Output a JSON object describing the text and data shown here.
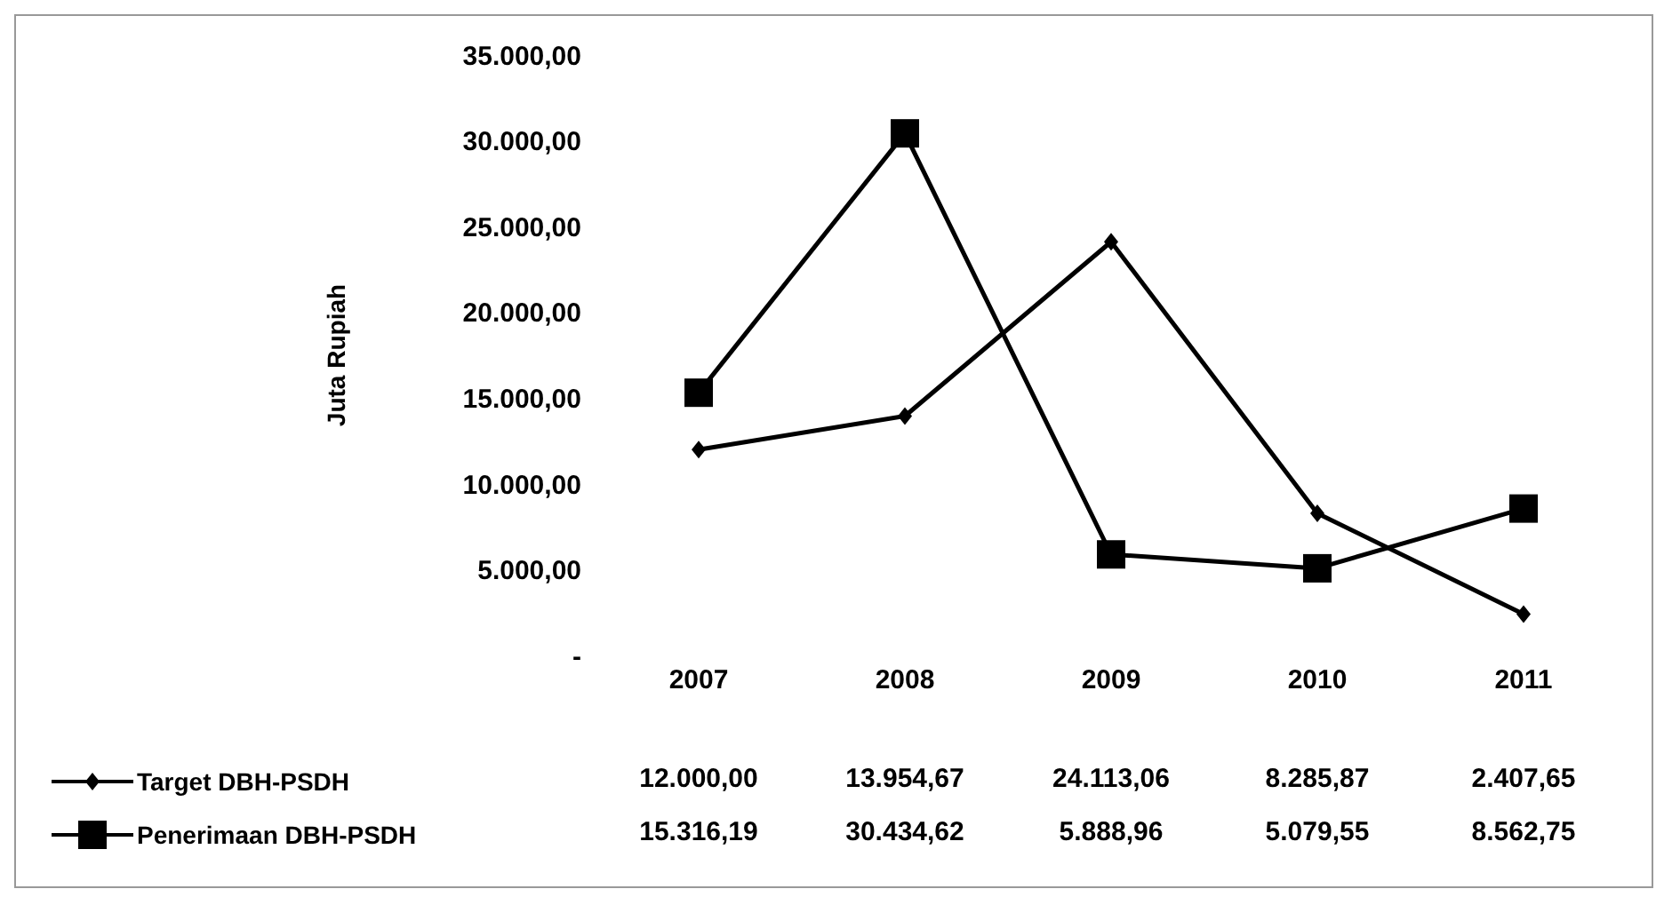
{
  "chart_data": {
    "type": "line",
    "ylabel": "Juta Rupiah",
    "categories": [
      "2007",
      "2008",
      "2009",
      "2010",
      "2011"
    ],
    "series": [
      {
        "name": "Target DBH-PSDH",
        "color": "#000000",
        "marker": "diamond",
        "values": [
          12000.0,
          13954.67,
          24113.06,
          8285.87,
          2407.65
        ],
        "value_labels": [
          "12.000,00",
          "13.954,67",
          "24.113,06",
          "8.285,87",
          "2.407,65"
        ]
      },
      {
        "name": "Penerimaan DBH-PSDH",
        "color": "#000000",
        "marker": "square",
        "values": [
          15316.19,
          30434.62,
          5888.96,
          5079.55,
          8562.75
        ],
        "value_labels": [
          "15.316,19",
          "30.434,62",
          "5.888,96",
          "5.079,55",
          "8.562,75"
        ]
      }
    ],
    "ylim": [
      0,
      35000
    ],
    "yticks": [
      {
        "value": 0,
        "label": "-"
      },
      {
        "value": 5000,
        "label": "5.000,00"
      },
      {
        "value": 10000,
        "label": "10.000,00"
      },
      {
        "value": 15000,
        "label": "15.000,00"
      },
      {
        "value": 20000,
        "label": "20.000,00"
      },
      {
        "value": 25000,
        "label": "25.000,00"
      },
      {
        "value": 30000,
        "label": "30.000,00"
      },
      {
        "value": 35000,
        "label": "35.000,00"
      }
    ],
    "grid": false,
    "legend": "bottom",
    "line_style": "solid"
  }
}
